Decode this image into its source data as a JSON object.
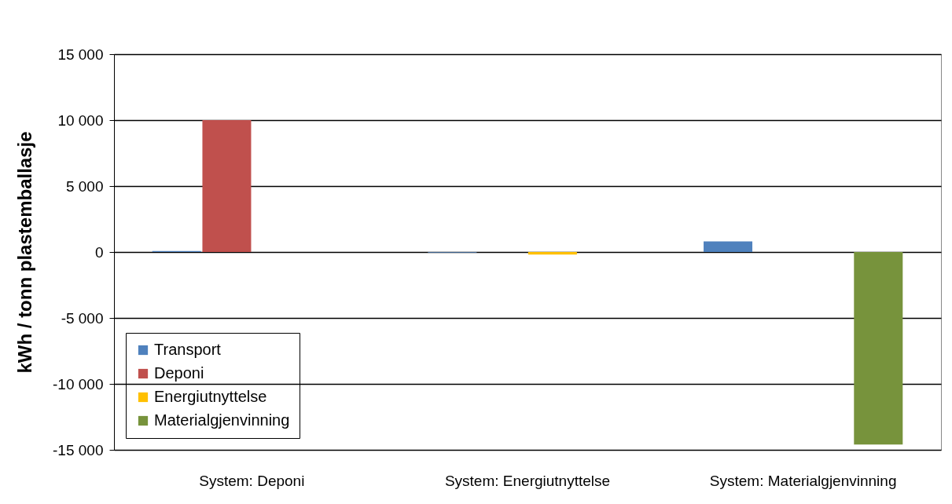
{
  "chart_data": {
    "type": "bar",
    "ylabel": "kWh / tonn plastemballasje",
    "categories": [
      "System: Deponi",
      "System: Energiutnyttelse",
      "System: Materialgjenvinning"
    ],
    "series": [
      {
        "name": "Transport",
        "color": "#4f81bd",
        "values": [
          80,
          -50,
          800
        ]
      },
      {
        "name": "Deponi",
        "color": "#c0504d",
        "values": [
          10000,
          null,
          null
        ]
      },
      {
        "name": "Energiutnyttelse",
        "color": "#ffc000",
        "values": [
          null,
          -200,
          null
        ]
      },
      {
        "name": "Materialgjenvinning",
        "color": "#77933c",
        "values": [
          null,
          null,
          -14600
        ]
      }
    ],
    "ylim": [
      -15000,
      15000
    ],
    "yticks": [
      {
        "value": -15000,
        "label": "-15 000"
      },
      {
        "value": -10000,
        "label": "-10 000"
      },
      {
        "value": -5000,
        "label": "-5 000"
      },
      0,
      {
        "value": 5000,
        "label": "5 000"
      },
      {
        "value": 10000,
        "label": "10 000"
      },
      {
        "value": 15000,
        "label": "15 000"
      }
    ],
    "grid": "y",
    "legend": "bottom left"
  }
}
